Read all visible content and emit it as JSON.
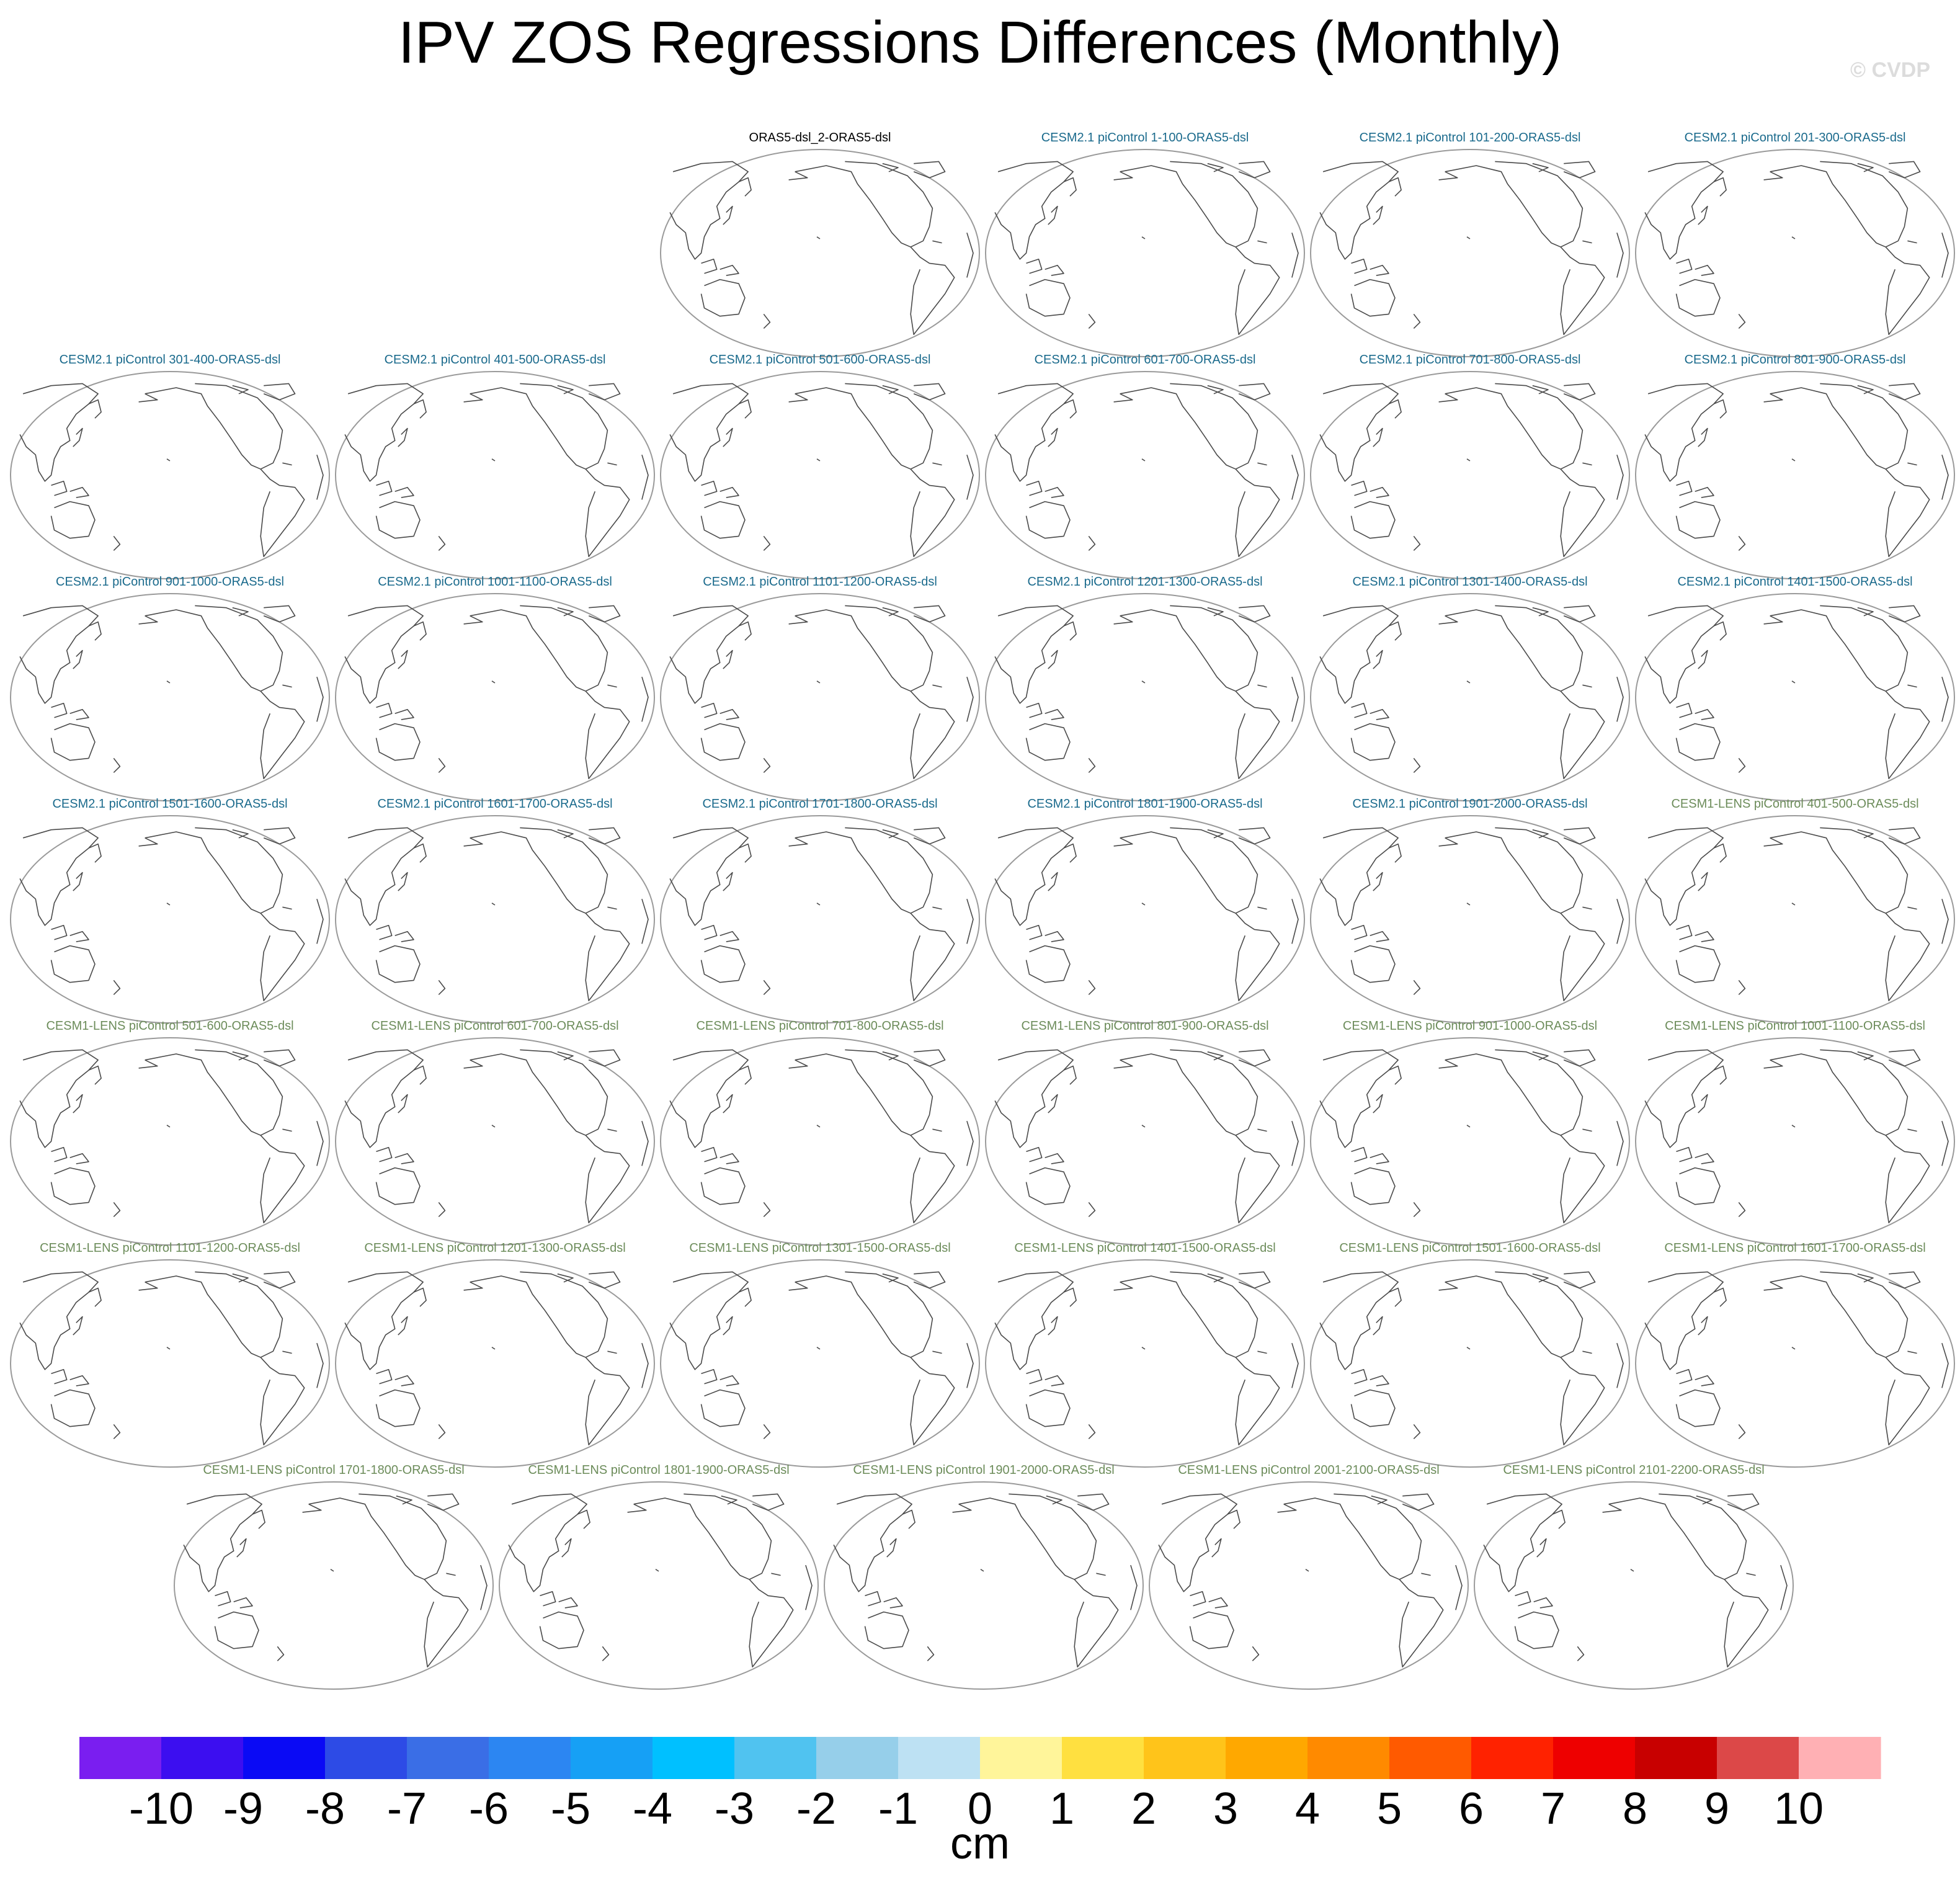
{
  "title": "IPV ZOS Regressions Differences (Monthly)",
  "credit": "© CVDP",
  "colors": {
    "obs_title": "#000000",
    "cesm2_title": "#1a6a8c",
    "cesm1_title": "#6c8c5a",
    "map_border": "#9a9a9a",
    "coast": "#4a4a4a"
  },
  "chart_data": {
    "type": "map-panel-grid",
    "variable": "ZOS",
    "index": "IPV",
    "projection": "Robinson (Pacific-centered)",
    "panels": [
      {
        "title": "ORAS5-dsl_2-ORAS5-dsl",
        "group": "obs"
      },
      {
        "title": "CESM2.1 piControl 1-100-ORAS5-dsl",
        "group": "cesm2"
      },
      {
        "title": "CESM2.1 piControl 101-200-ORAS5-dsl",
        "group": "cesm2"
      },
      {
        "title": "CESM2.1 piControl 201-300-ORAS5-dsl",
        "group": "cesm2"
      },
      {
        "title": "CESM2.1 piControl 301-400-ORAS5-dsl",
        "group": "cesm2"
      },
      {
        "title": "CESM2.1 piControl 401-500-ORAS5-dsl",
        "group": "cesm2"
      },
      {
        "title": "CESM2.1 piControl 501-600-ORAS5-dsl",
        "group": "cesm2"
      },
      {
        "title": "CESM2.1 piControl 601-700-ORAS5-dsl",
        "group": "cesm2"
      },
      {
        "title": "CESM2.1 piControl 701-800-ORAS5-dsl",
        "group": "cesm2"
      },
      {
        "title": "CESM2.1 piControl 801-900-ORAS5-dsl",
        "group": "cesm2"
      },
      {
        "title": "CESM2.1 piControl 901-1000-ORAS5-dsl",
        "group": "cesm2"
      },
      {
        "title": "CESM2.1 piControl 1001-1100-ORAS5-dsl",
        "group": "cesm2"
      },
      {
        "title": "CESM2.1 piControl 1101-1200-ORAS5-dsl",
        "group": "cesm2"
      },
      {
        "title": "CESM2.1 piControl 1201-1300-ORAS5-dsl",
        "group": "cesm2"
      },
      {
        "title": "CESM2.1 piControl 1301-1400-ORAS5-dsl",
        "group": "cesm2"
      },
      {
        "title": "CESM2.1 piControl 1401-1500-ORAS5-dsl",
        "group": "cesm2"
      },
      {
        "title": "CESM2.1 piControl 1501-1600-ORAS5-dsl",
        "group": "cesm2"
      },
      {
        "title": "CESM2.1 piControl 1601-1700-ORAS5-dsl",
        "group": "cesm2"
      },
      {
        "title": "CESM2.1 piControl 1701-1800-ORAS5-dsl",
        "group": "cesm2"
      },
      {
        "title": "CESM2.1 piControl 1801-1900-ORAS5-dsl",
        "group": "cesm2"
      },
      {
        "title": "CESM2.1 piControl 1901-2000-ORAS5-dsl",
        "group": "cesm2"
      },
      {
        "title": "CESM1-LENS piControl 401-500-ORAS5-dsl",
        "group": "cesm1"
      },
      {
        "title": "CESM1-LENS piControl 501-600-ORAS5-dsl",
        "group": "cesm1"
      },
      {
        "title": "CESM1-LENS piControl 601-700-ORAS5-dsl",
        "group": "cesm1"
      },
      {
        "title": "CESM1-LENS piControl 701-800-ORAS5-dsl",
        "group": "cesm1"
      },
      {
        "title": "CESM1-LENS piControl 801-900-ORAS5-dsl",
        "group": "cesm1"
      },
      {
        "title": "CESM1-LENS piControl 901-1000-ORAS5-dsl",
        "group": "cesm1"
      },
      {
        "title": "CESM1-LENS piControl 1001-1100-ORAS5-dsl",
        "group": "cesm1"
      },
      {
        "title": "CESM1-LENS piControl 1101-1200-ORAS5-dsl",
        "group": "cesm1"
      },
      {
        "title": "CESM1-LENS piControl 1201-1300-ORAS5-dsl",
        "group": "cesm1"
      },
      {
        "title": "CESM1-LENS piControl 1301-1500-ORAS5-dsl",
        "group": "cesm1"
      },
      {
        "title": "CESM1-LENS piControl 1401-1500-ORAS5-dsl",
        "group": "cesm1"
      },
      {
        "title": "CESM1-LENS piControl 1501-1600-ORAS5-dsl",
        "group": "cesm1"
      },
      {
        "title": "CESM1-LENS piControl 1601-1700-ORAS5-dsl",
        "group": "cesm1"
      },
      {
        "title": "CESM1-LENS piControl 1701-1800-ORAS5-dsl",
        "group": "cesm1"
      },
      {
        "title": "CESM1-LENS piControl 1801-1900-ORAS5-dsl",
        "group": "cesm1"
      },
      {
        "title": "CESM1-LENS piControl 1901-2000-ORAS5-dsl",
        "group": "cesm1"
      },
      {
        "title": "CESM1-LENS piControl 2001-2100-ORAS5-dsl",
        "group": "cesm1"
      },
      {
        "title": "CESM1-LENS piControl 2101-2200-ORAS5-dsl",
        "group": "cesm1"
      }
    ],
    "colorbar": {
      "unit": "cm",
      "tick_labels": [
        "-10",
        "-9",
        "-8",
        "-7",
        "-6",
        "-5",
        "-4",
        "-3",
        "-2",
        "-1",
        "0",
        "1",
        "2",
        "3",
        "4",
        "5",
        "6",
        "7",
        "8",
        "9",
        "10"
      ],
      "colors": [
        "#7a1ef0",
        "#3c0ef0",
        "#0a0af5",
        "#2d4be6",
        "#3a6ee6",
        "#2c86f2",
        "#16a0f5",
        "#00c0ff",
        "#50c3f0",
        "#96cfea",
        "#bde1f3",
        "#fff59a",
        "#ffe040",
        "#ffc41a",
        "#ffa800",
        "#ff8a00",
        "#ff5a00",
        "#ff2200",
        "#ee0000",
        "#c80000",
        "#dc4848",
        "#ffb0b4"
      ]
    }
  }
}
